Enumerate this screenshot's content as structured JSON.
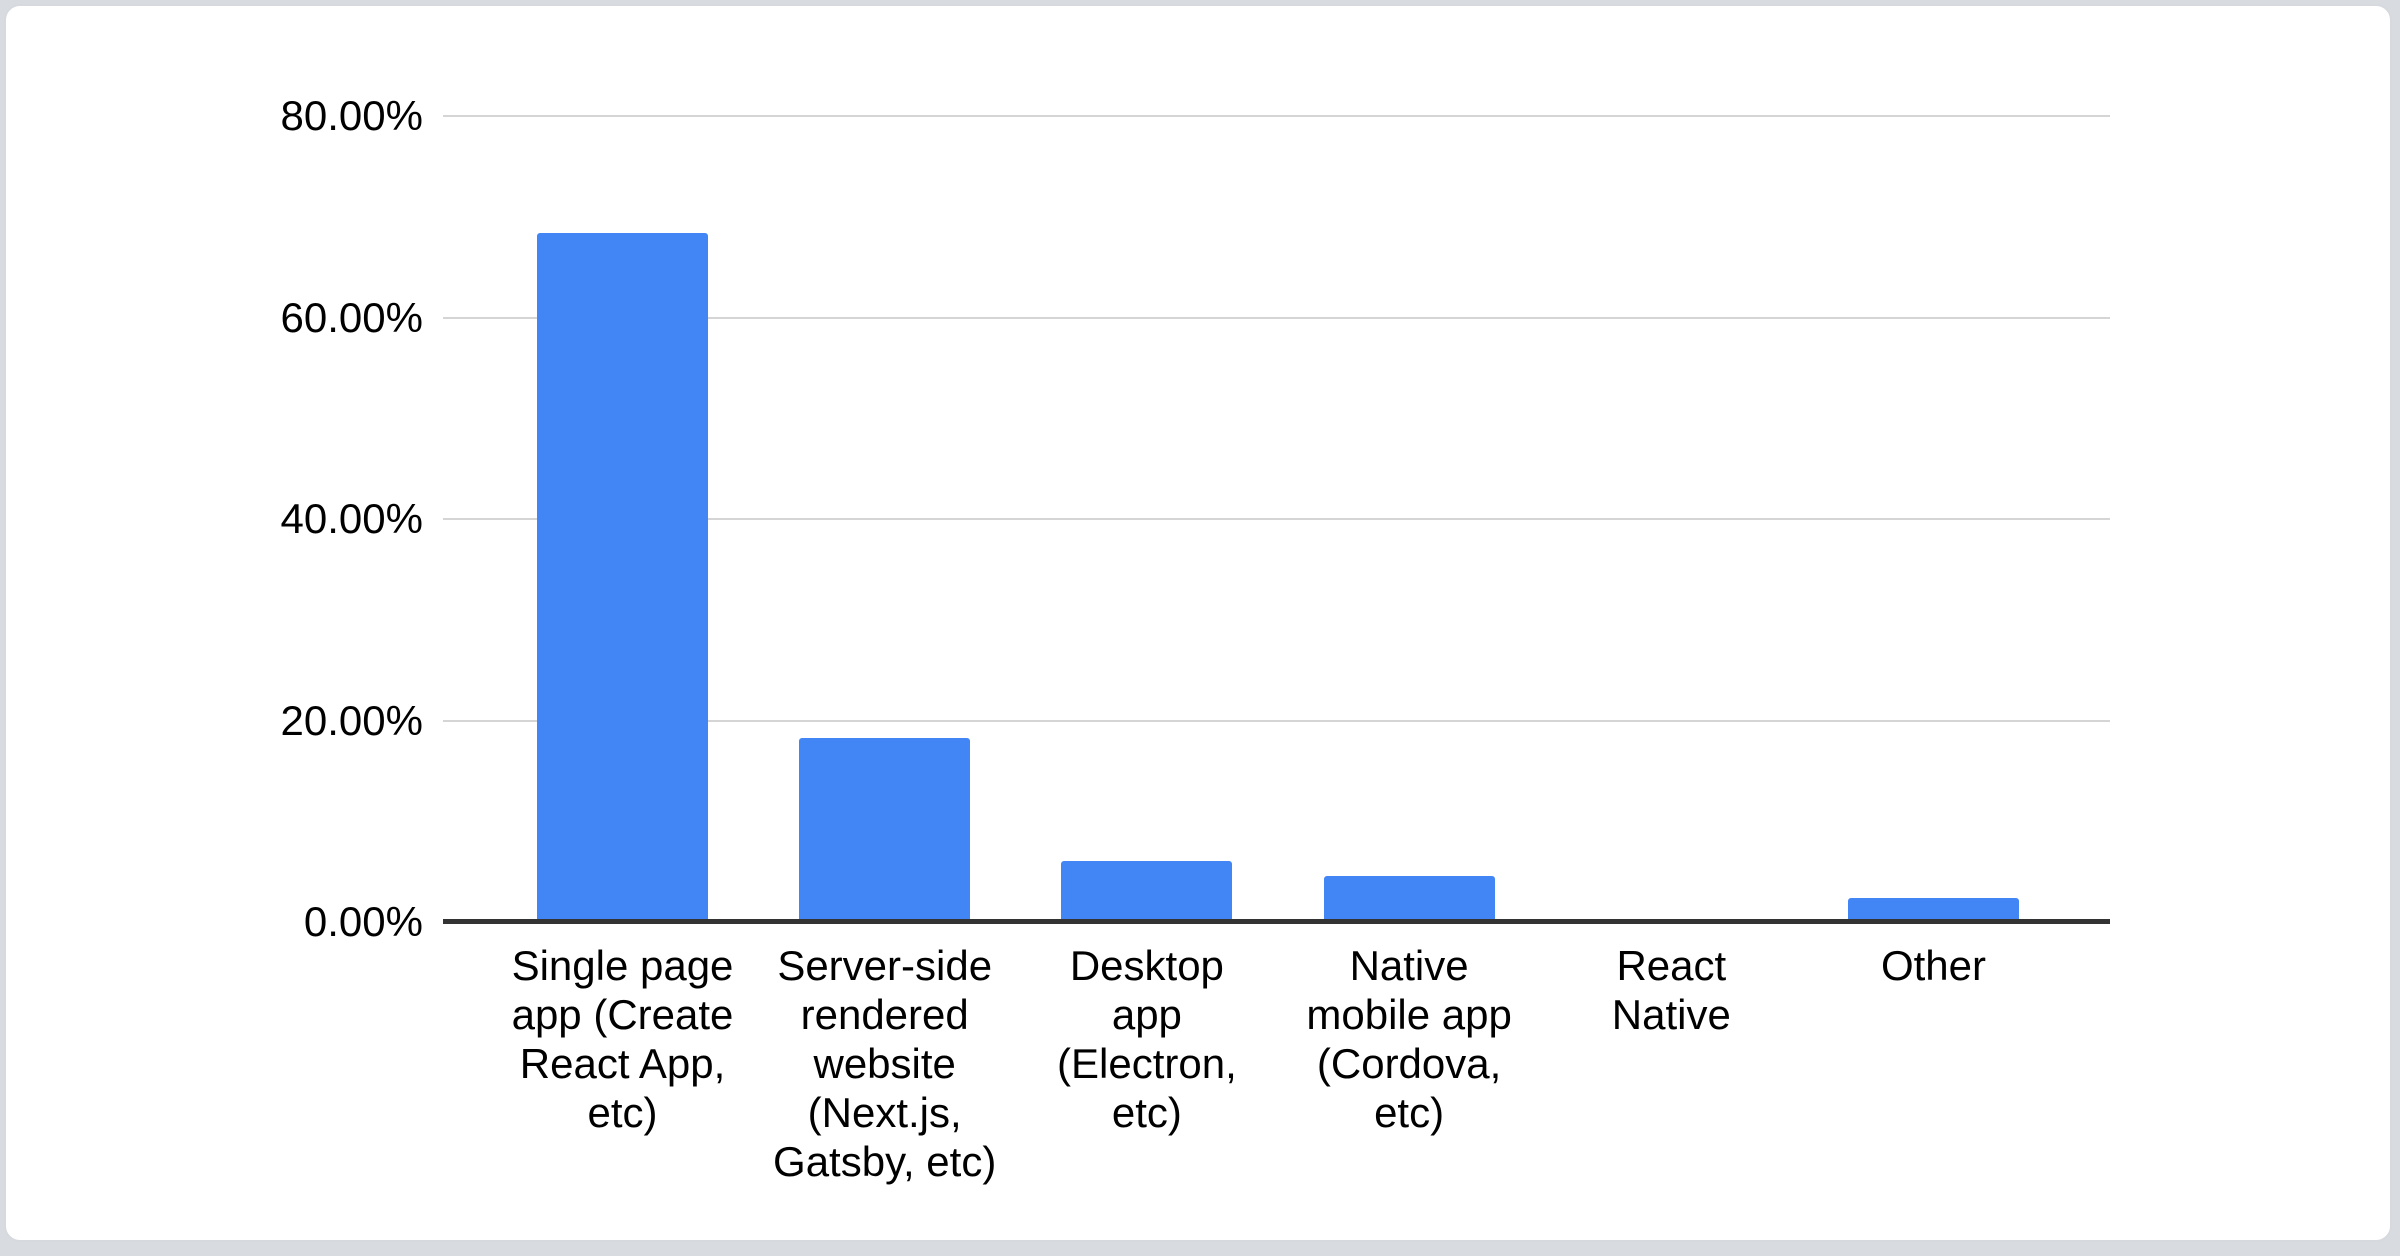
{
  "page": {
    "background_color": "#d8dbdf",
    "card_background": "#ffffff",
    "card_border_color": "#d6d9dd"
  },
  "chart_data": {
    "type": "bar",
    "title": "",
    "xlabel": "",
    "ylabel": "",
    "legend": "none",
    "grid": "horizontal",
    "ylim": [
      0,
      80
    ],
    "y_tick_labels": [
      "80.00%",
      "60.00%",
      "40.00%",
      "20.00%",
      "0.00%"
    ],
    "y_tick_values": [
      80,
      60,
      40,
      20,
      0
    ],
    "categories": [
      "Single page app (Create React App, etc)",
      "Server-side rendered website (Next.js, Gatsby, etc)",
      "Desktop app (Electron, etc)",
      "Native mobile app (Cordova, etc)",
      "React Native",
      "Other"
    ],
    "values": [
      68.4,
      18.3,
      6.1,
      4.6,
      0,
      2.4
    ],
    "bar_color": "#4285f4",
    "gridline_color": "#d5d5d5",
    "axis_line_color": "#333333",
    "tick_text_color": "#000000"
  }
}
